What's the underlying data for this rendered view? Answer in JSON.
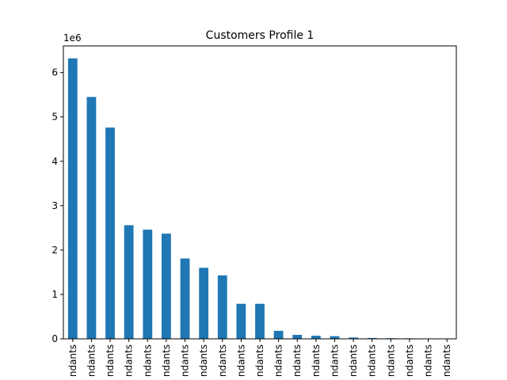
{
  "chart_data": {
    "type": "bar",
    "title": "Customers Profile 1",
    "xlabel": "",
    "ylabel": "",
    "y_offset_label": "1e6",
    "ylim": [
      0,
      6600000
    ],
    "y_ticks": [
      0,
      1,
      2,
      3,
      4,
      5,
      6
    ],
    "y_tick_scale": 1000000,
    "bar_color": "#1f77b4",
    "categories": [
      "ndants",
      "ndants",
      "ndants",
      "ndants",
      "ndants",
      "ndants",
      "ndants",
      "ndants",
      "ndants",
      "ndants",
      "ndants",
      "ndants",
      "ndants",
      "ndants",
      "ndants",
      "ndants",
      "ndants",
      "ndants",
      "ndants",
      "ndants",
      "ndants"
    ],
    "values": [
      6320000,
      5450000,
      4760000,
      2560000,
      2460000,
      2370000,
      1810000,
      1600000,
      1430000,
      790000,
      790000,
      180000,
      90000,
      70000,
      60000,
      30000,
      20000,
      15000,
      12000,
      5000,
      3000
    ],
    "grid": false,
    "legend": "none"
  }
}
